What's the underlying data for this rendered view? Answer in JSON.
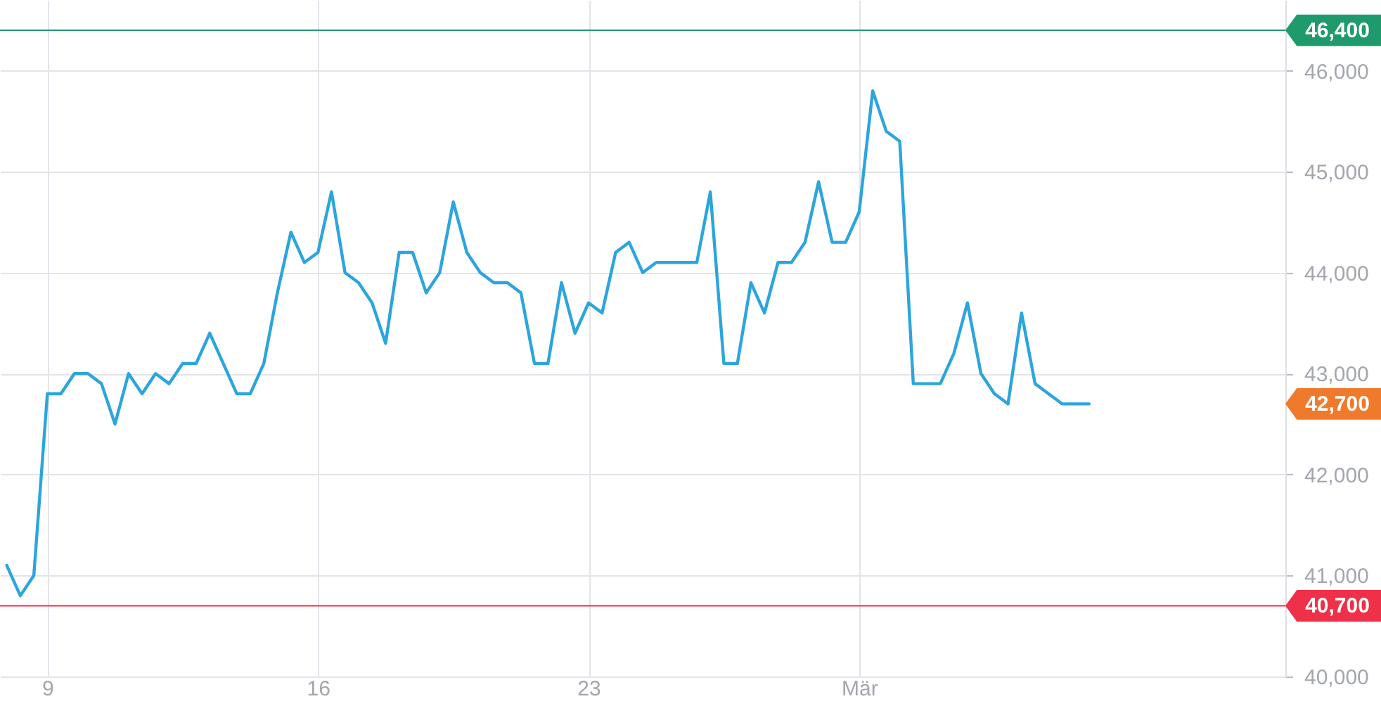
{
  "chart_data": {
    "type": "line",
    "categories": [
      null,
      null,
      null,
      "9",
      null,
      null,
      null,
      null,
      null,
      null,
      null,
      null,
      null,
      null,
      null,
      null,
      null,
      null,
      null,
      null,
      null,
      null,
      null,
      "16",
      null,
      null,
      null,
      null,
      null,
      null,
      null,
      null,
      null,
      null,
      null,
      null,
      null,
      null,
      null,
      null,
      null,
      null,
      null,
      "23",
      null,
      null,
      null,
      null,
      null,
      null,
      null,
      null,
      null,
      null,
      null,
      null,
      null,
      null,
      null,
      null,
      null,
      null,
      null,
      "Mär",
      null,
      null,
      null,
      null,
      null,
      null,
      null,
      null,
      null,
      null,
      null,
      null,
      null,
      null,
      null,
      null,
      null,
      null,
      null,
      null,
      null,
      null,
      null,
      null,
      null,
      null,
      null,
      null,
      null,
      null,
      null
    ],
    "series": [
      {
        "color": "#2ca5dd",
        "values": [
          41100,
          40800,
          41000,
          42800,
          42800,
          43000,
          43000,
          42900,
          42500,
          43000,
          42800,
          43000,
          42900,
          43100,
          43100,
          43400,
          43100,
          42800,
          42800,
          43100,
          43800,
          44400,
          44100,
          44200,
          44800,
          44000,
          43900,
          43700,
          43300,
          44200,
          44200,
          43800,
          44000,
          44700,
          44200,
          44000,
          43900,
          43900,
          43800,
          43100,
          43100,
          43900,
          43400,
          43700,
          43600,
          44200,
          44300,
          44000,
          44100,
          44100,
          44100,
          44100,
          44800,
          43100,
          43100,
          43900,
          43600,
          44100,
          44100,
          44300,
          44900,
          44300,
          44300,
          44600,
          45800,
          45400,
          45300,
          42900,
          42900,
          42900,
          43200,
          43700,
          43000,
          42800,
          42700,
          43600,
          42900,
          42800,
          42700,
          42700,
          42700,
          null,
          null,
          null,
          null,
          null,
          null,
          null,
          null,
          null,
          null,
          null,
          null,
          null,
          null
        ]
      }
    ],
    "ylim": [
      40000,
      46700
    ],
    "yticks": [
      {
        "value": 40000,
        "label": "40,000"
      },
      {
        "value": 41000,
        "label": "41,000"
      },
      {
        "value": 42000,
        "label": "42,000"
      },
      {
        "value": 43000,
        "label": "43,000"
      },
      {
        "value": 44000,
        "label": "44,000"
      },
      {
        "value": 45000,
        "label": "45,000"
      },
      {
        "value": 46000,
        "label": "46,000"
      }
    ],
    "grid": true,
    "ref_lines": [
      {
        "axis": "y",
        "value": 46400,
        "label": "46,400",
        "color": "#1f9a6c"
      },
      {
        "axis": "y",
        "value": 40700,
        "label": "40,700",
        "color": "#ee3049"
      }
    ],
    "annotations": [
      "42,700"
    ]
  }
}
